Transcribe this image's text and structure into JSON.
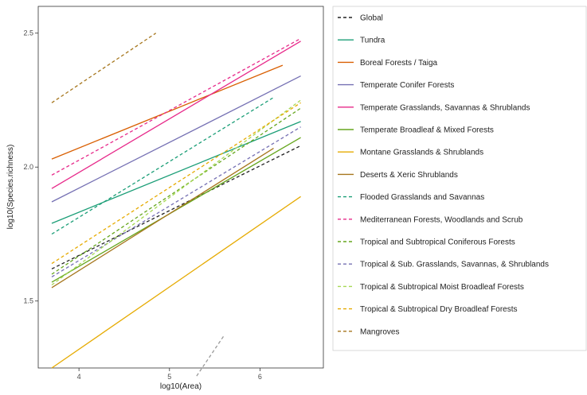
{
  "chart_data": {
    "type": "line",
    "xlabel": "log10(Area)",
    "ylabel": "log10(Species.richness)",
    "xlim": [
      3.55,
      6.7
    ],
    "ylim": [
      1.25,
      2.6
    ],
    "x_ticks": [
      4,
      5,
      6
    ],
    "x_tick_labels": [
      "4",
      "5",
      "6"
    ],
    "y_ticks": [
      1.5,
      2.0,
      2.5
    ],
    "y_tick_labels": [
      "1.5",
      "2.0",
      "2.5"
    ],
    "grid": false,
    "legend_position": "right",
    "series": [
      {
        "name": "Global",
        "color": "#222222",
        "dash": "dashed",
        "x": [
          3.7,
          6.45
        ],
        "y": [
          1.62,
          2.08
        ]
      },
      {
        "name": "Tundra",
        "color": "#1b9e77",
        "dash": "solid",
        "x": [
          3.7,
          6.45
        ],
        "y": [
          1.79,
          2.17
        ]
      },
      {
        "name": "Boreal Forests / Taiga",
        "color": "#d95f02",
        "dash": "solid",
        "x": [
          3.7,
          6.25
        ],
        "y": [
          2.03,
          2.38
        ]
      },
      {
        "name": "Temperate Conifer Forests",
        "color": "#7570b3",
        "dash": "solid",
        "x": [
          3.7,
          6.45
        ],
        "y": [
          1.87,
          2.34
        ]
      },
      {
        "name": "Temperate Grasslands, Savannas & Shrublands",
        "color": "#e7298a",
        "dash": "solid",
        "x": [
          3.7,
          6.45
        ],
        "y": [
          1.92,
          2.47
        ]
      },
      {
        "name": "Temperate Broadleaf & Mixed Forests",
        "color": "#66a61e",
        "dash": "solid",
        "x": [
          3.7,
          6.45
        ],
        "y": [
          1.57,
          2.11
        ]
      },
      {
        "name": "Montane Grasslands & Shrublands",
        "color": "#e6ab02",
        "dash": "solid",
        "x": [
          3.7,
          6.45
        ],
        "y": [
          1.25,
          1.89
        ]
      },
      {
        "name": "Deserts & Xeric Shrublands",
        "color": "#a6761d",
        "dash": "solid",
        "x": [
          3.7,
          6.15
        ],
        "y": [
          1.55,
          2.07
        ]
      },
      {
        "name": "Flooded Grasslands and Savannas",
        "color": "#1b9e77",
        "dash": "dashed",
        "x": [
          3.7,
          6.15
        ],
        "y": [
          1.75,
          2.26
        ]
      },
      {
        "name": "Mediterranean Forests, Woodlands and Scrub",
        "color": "#e7298a",
        "dash": "dashed",
        "x": [
          3.7,
          6.45
        ],
        "y": [
          1.97,
          2.48
        ]
      },
      {
        "name": "Tropical and Subtropical Coniferous Forests",
        "color": "#66a61e",
        "dash": "dashed",
        "x": [
          3.7,
          6.45
        ],
        "y": [
          1.6,
          2.22
        ]
      },
      {
        "name": "Tropical & Sub. Grasslands, Savannas, & Shrublands",
        "color": "#7570b3",
        "dash": "dashed",
        "x": [
          3.7,
          6.45
        ],
        "y": [
          1.59,
          2.15
        ]
      },
      {
        "name": "Tropical & Subtropical Moist Broadleaf Forests",
        "color": "#a6d854",
        "dash": "dashed",
        "x": [
          3.7,
          6.45
        ],
        "y": [
          1.56,
          2.25
        ]
      },
      {
        "name": "Tropical & Subtropical Dry Broadleaf Forests",
        "color": "#e6ab02",
        "dash": "dashed",
        "x": [
          3.7,
          6.45
        ],
        "y": [
          1.64,
          2.24
        ]
      },
      {
        "name": "Mangroves",
        "color": "#a6761d",
        "dash": "dashed",
        "x": [
          3.7,
          4.85
        ],
        "y": [
          2.24,
          2.5
        ]
      },
      {
        "name": "",
        "color": "#999999",
        "dash": "dashed",
        "x": [
          5.3,
          5.6
        ],
        "y": [
          1.22,
          1.37
        ]
      }
    ]
  },
  "legend": [
    {
      "label": "Global",
      "color": "#222222",
      "dash": "dashed"
    },
    {
      "label": "Tundra",
      "color": "#1b9e77",
      "dash": "solid"
    },
    {
      "label": "Boreal Forests / Taiga",
      "color": "#d95f02",
      "dash": "solid"
    },
    {
      "label": "Temperate Conifer Forests",
      "color": "#7570b3",
      "dash": "solid"
    },
    {
      "label": "Temperate Grasslands, Savannas & Shrublands",
      "color": "#e7298a",
      "dash": "solid"
    },
    {
      "label": "Temperate Broadleaf & Mixed Forests",
      "color": "#66a61e",
      "dash": "solid"
    },
    {
      "label": "Montane Grasslands & Shrublands",
      "color": "#e6ab02",
      "dash": "solid"
    },
    {
      "label": "Deserts & Xeric Shrublands",
      "color": "#a6761d",
      "dash": "solid"
    },
    {
      "label": "Flooded Grasslands and Savannas",
      "color": "#1b9e77",
      "dash": "dashed"
    },
    {
      "label": "Mediterranean Forests, Woodlands and Scrub",
      "color": "#e7298a",
      "dash": "dashed"
    },
    {
      "label": "Tropical and Subtropical Coniferous Forests",
      "color": "#66a61e",
      "dash": "dashed"
    },
    {
      "label": "Tropical & Sub. Grasslands, Savannas, & Shrublands",
      "color": "#7570b3",
      "dash": "dashed"
    },
    {
      "label": "Tropical & Subtropical Moist Broadleaf Forests",
      "color": "#a6d854",
      "dash": "dashed"
    },
    {
      "label": "Tropical & Subtropical Dry Broadleaf Forests",
      "color": "#e6ab02",
      "dash": "dashed"
    },
    {
      "label": "Mangroves",
      "color": "#a6761d",
      "dash": "dashed"
    }
  ]
}
